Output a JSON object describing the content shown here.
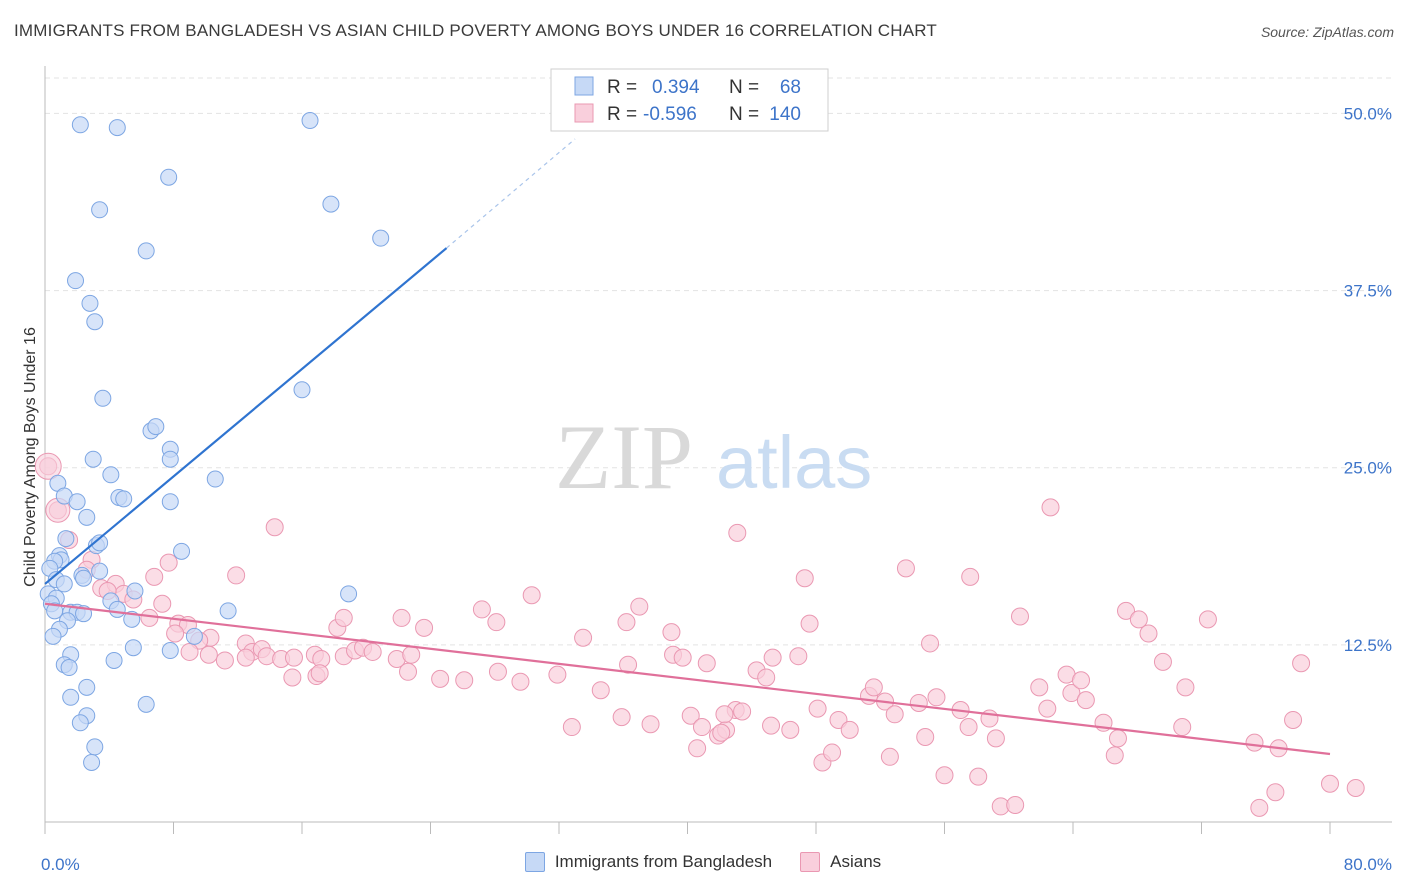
{
  "header": {
    "title": "IMMIGRANTS FROM BANGLADESH VS ASIAN CHILD POVERTY AMONG BOYS UNDER 16 CORRELATION CHART",
    "source": "Source: ZipAtlas.com"
  },
  "watermark": {
    "zip": "ZIP",
    "atlas": "atlas"
  },
  "colors": {
    "blue_fill": "#c6d9f6",
    "blue_stroke": "#7da6e3",
    "blue_line": "#2f74d0",
    "pink_fill": "#f9cfdc",
    "pink_stroke": "#ea98b2",
    "pink_line": "#e0709a",
    "value_text": "#3d74c9",
    "grid": "#e3e3e3"
  },
  "legend_box": {
    "rows": [
      {
        "r_label": "R =",
        "r_value": "0.394",
        "n_label": "N =",
        "n_value": "68"
      },
      {
        "r_label": "R =",
        "r_value": "-0.596",
        "n_label": "N =",
        "n_value": "140"
      }
    ]
  },
  "legend_bottom": {
    "series1": "Immigrants from Bangladesh",
    "series2": "Asians"
  },
  "chart_data": {
    "type": "scatter",
    "title": "IMMIGRANTS FROM BANGLADESH VS ASIAN CHILD POVERTY AMONG BOYS UNDER 16 CORRELATION CHART",
    "ylabel": "Child Poverty Among Boys Under 16",
    "xlabel": "",
    "xlim": [
      0,
      80
    ],
    "ylim": [
      0,
      52.5
    ],
    "x_tick_labels": [
      {
        "value": 0,
        "label": "0.0%"
      },
      {
        "value": 80,
        "label": "80.0%"
      }
    ],
    "y_tick_labels": [
      {
        "value": 12.5,
        "label": "12.5%"
      },
      {
        "value": 25,
        "label": "25.0%"
      },
      {
        "value": 37.5,
        "label": "37.5%"
      },
      {
        "value": 50,
        "label": "50.0%"
      }
    ],
    "grid": true,
    "legend_position": "top-center",
    "series": [
      {
        "name": "Immigrants from Bangladesh",
        "r": 0.394,
        "n": 68,
        "trend": {
          "x0": 0,
          "y0": 16.8,
          "x1": 25,
          "y1": 40.5,
          "dashed_to_x": 33,
          "dashed_to_y": 48.2
        },
        "points": [
          [
            2.2,
            49.2
          ],
          [
            4.5,
            49.0
          ],
          [
            16.5,
            49.5
          ],
          [
            7.7,
            45.5
          ],
          [
            3.4,
            43.2
          ],
          [
            17.8,
            43.6
          ],
          [
            6.3,
            40.3
          ],
          [
            20.9,
            41.2
          ],
          [
            1.9,
            38.2
          ],
          [
            2.8,
            36.6
          ],
          [
            3.1,
            35.3
          ],
          [
            3.6,
            29.9
          ],
          [
            16.0,
            30.5
          ],
          [
            6.6,
            27.6
          ],
          [
            6.9,
            27.9
          ],
          [
            7.8,
            26.3
          ],
          [
            7.8,
            25.6
          ],
          [
            3.0,
            25.6
          ],
          [
            4.1,
            24.5
          ],
          [
            10.6,
            24.2
          ],
          [
            0.8,
            23.9
          ],
          [
            1.2,
            23.0
          ],
          [
            2.0,
            22.6
          ],
          [
            4.6,
            22.9
          ],
          [
            4.9,
            22.8
          ],
          [
            7.8,
            22.6
          ],
          [
            2.6,
            21.5
          ],
          [
            1.3,
            20.0
          ],
          [
            3.2,
            19.5
          ],
          [
            3.4,
            19.7
          ],
          [
            8.5,
            19.1
          ],
          [
            0.9,
            18.8
          ],
          [
            1.0,
            18.5
          ],
          [
            0.6,
            18.4
          ],
          [
            0.3,
            17.9
          ],
          [
            2.3,
            17.4
          ],
          [
            3.4,
            17.7
          ],
          [
            0.7,
            17.1
          ],
          [
            2.4,
            17.2
          ],
          [
            1.2,
            16.8
          ],
          [
            5.6,
            16.3
          ],
          [
            18.9,
            16.1
          ],
          [
            0.2,
            16.1
          ],
          [
            0.7,
            15.8
          ],
          [
            0.4,
            15.4
          ],
          [
            4.1,
            15.6
          ],
          [
            0.6,
            14.9
          ],
          [
            1.6,
            14.8
          ],
          [
            2.0,
            14.8
          ],
          [
            2.4,
            14.7
          ],
          [
            11.4,
            14.9
          ],
          [
            4.5,
            15.0
          ],
          [
            5.4,
            14.3
          ],
          [
            1.4,
            14.2
          ],
          [
            0.9,
            13.6
          ],
          [
            0.5,
            13.1
          ],
          [
            9.3,
            13.1
          ],
          [
            5.5,
            12.3
          ],
          [
            7.8,
            12.1
          ],
          [
            1.6,
            11.8
          ],
          [
            1.2,
            11.1
          ],
          [
            1.5,
            10.9
          ],
          [
            4.3,
            11.4
          ],
          [
            2.6,
            9.5
          ],
          [
            1.6,
            8.8
          ],
          [
            6.3,
            8.3
          ],
          [
            2.6,
            7.5
          ],
          [
            2.2,
            7.0
          ],
          [
            3.1,
            5.3
          ],
          [
            2.9,
            4.2
          ]
        ]
      },
      {
        "name": "Asians",
        "r": -0.596,
        "n": 140,
        "trend": {
          "x0": 0,
          "y0": 15.4,
          "x1": 80,
          "y1": 4.8
        },
        "points": [
          [
            0.2,
            25.1
          ],
          [
            0.8,
            22.0
          ],
          [
            14.3,
            20.8
          ],
          [
            1.5,
            19.9
          ],
          [
            2.9,
            18.5
          ],
          [
            7.7,
            18.3
          ],
          [
            2.6,
            17.8
          ],
          [
            6.8,
            17.3
          ],
          [
            11.9,
            17.4
          ],
          [
            3.5,
            16.5
          ],
          [
            4.4,
            16.8
          ],
          [
            4.9,
            16.1
          ],
          [
            5.5,
            15.7
          ],
          [
            7.3,
            15.4
          ],
          [
            3.9,
            16.3
          ],
          [
            6.5,
            14.4
          ],
          [
            8.3,
            14.0
          ],
          [
            8.9,
            13.9
          ],
          [
            8.1,
            13.3
          ],
          [
            10.3,
            13.0
          ],
          [
            9.6,
            12.8
          ],
          [
            12.5,
            12.6
          ],
          [
            12.9,
            12.0
          ],
          [
            13.5,
            12.2
          ],
          [
            9.0,
            12.0
          ],
          [
            10.2,
            11.8
          ],
          [
            11.2,
            11.4
          ],
          [
            12.5,
            11.6
          ],
          [
            13.8,
            11.7
          ],
          [
            14.7,
            11.5
          ],
          [
            15.5,
            11.6
          ],
          [
            16.8,
            11.8
          ],
          [
            17.2,
            11.5
          ],
          [
            18.6,
            11.7
          ],
          [
            19.3,
            12.1
          ],
          [
            19.8,
            12.3
          ],
          [
            20.4,
            12.0
          ],
          [
            21.9,
            11.5
          ],
          [
            22.8,
            11.8
          ],
          [
            23.6,
            13.7
          ],
          [
            15.4,
            10.2
          ],
          [
            16.9,
            10.3
          ],
          [
            17.1,
            10.5
          ],
          [
            18.2,
            13.7
          ],
          [
            18.6,
            14.4
          ],
          [
            22.2,
            14.4
          ],
          [
            22.6,
            10.6
          ],
          [
            24.6,
            10.1
          ],
          [
            26.1,
            10.0
          ],
          [
            27.2,
            15.0
          ],
          [
            28.1,
            14.1
          ],
          [
            28.2,
            10.6
          ],
          [
            29.6,
            9.9
          ],
          [
            30.3,
            16.0
          ],
          [
            31.9,
            10.4
          ],
          [
            32.8,
            6.7
          ],
          [
            33.5,
            13.0
          ],
          [
            34.6,
            9.3
          ],
          [
            35.9,
            7.4
          ],
          [
            36.2,
            14.1
          ],
          [
            37.0,
            15.2
          ],
          [
            37.7,
            6.9
          ],
          [
            36.3,
            11.1
          ],
          [
            39.0,
            13.4
          ],
          [
            39.1,
            11.8
          ],
          [
            39.7,
            11.6
          ],
          [
            40.2,
            7.5
          ],
          [
            40.6,
            5.2
          ],
          [
            40.9,
            6.7
          ],
          [
            41.9,
            6.1
          ],
          [
            42.4,
            6.5
          ],
          [
            43.0,
            7.9
          ],
          [
            42.1,
            6.3
          ],
          [
            43.4,
            7.8
          ],
          [
            41.2,
            11.2
          ],
          [
            43.1,
            20.4
          ],
          [
            42.3,
            7.6
          ],
          [
            44.3,
            10.7
          ],
          [
            44.9,
            10.2
          ],
          [
            45.3,
            11.6
          ],
          [
            45.2,
            6.8
          ],
          [
            46.4,
            6.5
          ],
          [
            46.9,
            11.7
          ],
          [
            47.3,
            17.2
          ],
          [
            47.6,
            14.0
          ],
          [
            48.4,
            4.2
          ],
          [
            48.1,
            8.0
          ],
          [
            49.0,
            4.9
          ],
          [
            49.4,
            7.2
          ],
          [
            50.1,
            6.5
          ],
          [
            51.3,
            8.9
          ],
          [
            51.6,
            9.5
          ],
          [
            52.3,
            8.5
          ],
          [
            52.6,
            4.6
          ],
          [
            52.9,
            7.6
          ],
          [
            53.6,
            17.9
          ],
          [
            54.4,
            8.4
          ],
          [
            54.8,
            6.0
          ],
          [
            55.1,
            12.6
          ],
          [
            55.5,
            8.8
          ],
          [
            56.0,
            3.3
          ],
          [
            57.0,
            7.9
          ],
          [
            57.5,
            6.7
          ],
          [
            58.1,
            3.2
          ],
          [
            58.8,
            7.3
          ],
          [
            59.2,
            5.9
          ],
          [
            57.6,
            17.3
          ],
          [
            59.5,
            1.1
          ],
          [
            60.4,
            1.2
          ],
          [
            60.7,
            14.5
          ],
          [
            61.9,
            9.5
          ],
          [
            62.4,
            8.0
          ],
          [
            62.6,
            22.2
          ],
          [
            63.6,
            10.4
          ],
          [
            63.9,
            9.1
          ],
          [
            64.5,
            10.0
          ],
          [
            64.8,
            8.6
          ],
          [
            65.9,
            7.0
          ],
          [
            66.8,
            5.9
          ],
          [
            66.6,
            4.7
          ],
          [
            67.3,
            14.9
          ],
          [
            68.1,
            14.3
          ],
          [
            68.7,
            13.3
          ],
          [
            69.6,
            11.3
          ],
          [
            71.0,
            9.5
          ],
          [
            70.8,
            6.7
          ],
          [
            72.4,
            14.3
          ],
          [
            75.6,
            1.0
          ],
          [
            75.3,
            5.6
          ],
          [
            76.6,
            2.1
          ],
          [
            76.8,
            5.2
          ],
          [
            77.7,
            7.2
          ],
          [
            78.2,
            11.2
          ],
          [
            80.0,
            2.7
          ],
          [
            81.6,
            2.4
          ]
        ]
      }
    ]
  }
}
